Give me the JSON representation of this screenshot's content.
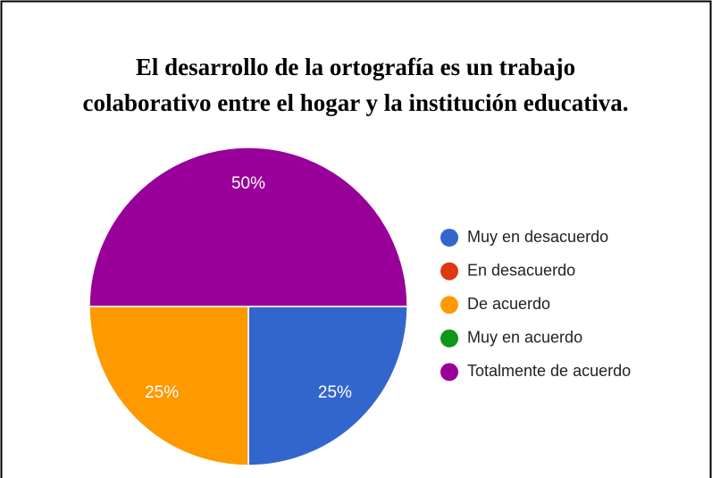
{
  "chart_data": {
    "type": "pie",
    "title": [
      "El desarrollo de la ortografía es un trabajo",
      "colaborativo entre el hogar y la institución educativa."
    ],
    "categories": [
      "Muy en desacuerdo",
      "En desacuerdo",
      "De acuerdo",
      "Muy en acuerdo",
      "Totalmente de acuerdo"
    ],
    "values": [
      25,
      0,
      25,
      0,
      50
    ],
    "value_labels": [
      "25%",
      null,
      "25%",
      null,
      "50%"
    ],
    "colors": [
      "#3366cc",
      "#dc3912",
      "#ff9900",
      "#109618",
      "#990099"
    ],
    "legend": "right"
  }
}
